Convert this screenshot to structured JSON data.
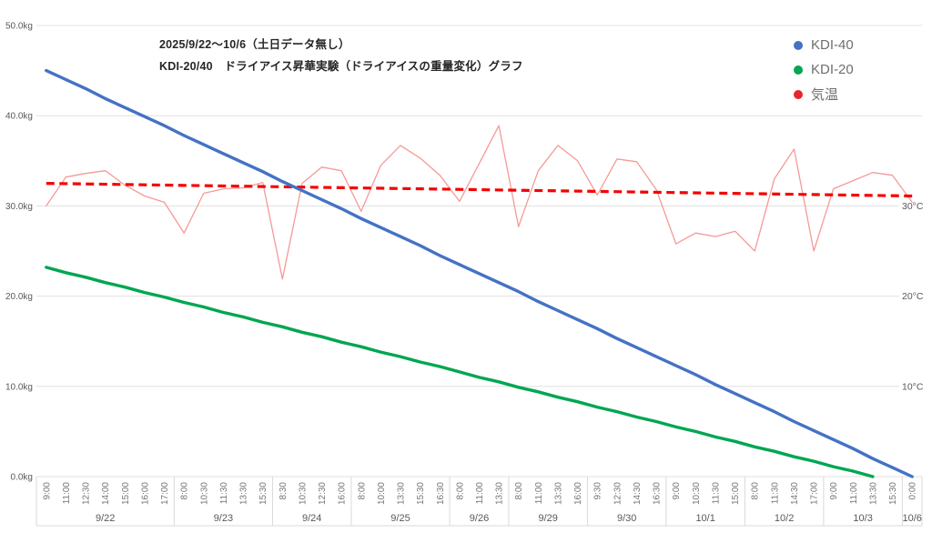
{
  "chart_data": {
    "type": "line",
    "title_lines": [
      "2025/9/22～10/6（土日データ無し）",
      "KDI-20/40　ドライアイス昇華実験（ドライアイスの重量変化）グラフ"
    ],
    "x_groups": [
      {
        "date": "9/22",
        "times": [
          "9:00",
          "11:00",
          "12:30",
          "14:00",
          "15:00",
          "16:00",
          "17:00"
        ]
      },
      {
        "date": "9/23",
        "times": [
          "8:00",
          "10:30",
          "11:30",
          "13:30",
          "15:30"
        ]
      },
      {
        "date": "9/24",
        "times": [
          "8:30",
          "10:30",
          "12:30",
          "16:00"
        ]
      },
      {
        "date": "9/25",
        "times": [
          "8:00",
          "10:00",
          "13:30",
          "15:30",
          "16:30"
        ]
      },
      {
        "date": "9/26",
        "times": [
          "8:00",
          "11:00",
          "13:30"
        ]
      },
      {
        "date": "9/29",
        "times": [
          "8:00",
          "11:00",
          "13:30",
          "16:00"
        ]
      },
      {
        "date": "9/30",
        "times": [
          "9:30",
          "12:30",
          "14:30",
          "16:30"
        ]
      },
      {
        "date": "10/1",
        "times": [
          "9:00",
          "10:30",
          "11:30",
          "15:00"
        ]
      },
      {
        "date": "10/2",
        "times": [
          "8:00",
          "11:30",
          "14:30",
          "17:00"
        ]
      },
      {
        "date": "10/3",
        "times": [
          "9:00",
          "11:00",
          "13:30",
          "15:30"
        ]
      },
      {
        "date": "10/6",
        "times": [
          "0:00"
        ]
      }
    ],
    "y_left": {
      "unit": "kg",
      "min": 0,
      "max": 50,
      "ticks": [
        {
          "v": 50,
          "label": "50.0kg"
        },
        {
          "v": 40,
          "label": "40.0kg"
        },
        {
          "v": 30,
          "label": "30.0kg"
        },
        {
          "v": 20,
          "label": "20.0kg"
        },
        {
          "v": 10,
          "label": "10.0kg"
        },
        {
          "v": 0,
          "label": "0.0kg"
        }
      ]
    },
    "y_right": {
      "unit": "°C",
      "ticks": [
        {
          "v": 30,
          "label": "30°C"
        },
        {
          "v": 20,
          "label": "20°C"
        },
        {
          "v": 10,
          "label": "10°C"
        }
      ]
    },
    "series": [
      {
        "name": "KDI-40",
        "unit": "kg",
        "color": "#4472c4",
        "line_style": "solid",
        "values": [
          45.0,
          44.0,
          43.0,
          41.9,
          40.9,
          39.9,
          38.9,
          37.8,
          36.8,
          35.8,
          34.8,
          33.8,
          32.7,
          31.7,
          30.7,
          29.7,
          28.6,
          27.6,
          26.6,
          25.6,
          24.5,
          23.5,
          22.5,
          21.5,
          20.5,
          19.4,
          18.4,
          17.4,
          16.4,
          15.3,
          14.3,
          13.3,
          12.3,
          11.3,
          10.2,
          9.2,
          8.2,
          7.2,
          6.1,
          5.1,
          4.1,
          3.1,
          2.0,
          1.0,
          0.0
        ]
      },
      {
        "name": "KDI-20",
        "unit": "kg",
        "color": "#00a651",
        "line_style": "solid",
        "values": [
          23.2,
          22.6,
          22.1,
          21.5,
          21.0,
          20.4,
          19.9,
          19.3,
          18.8,
          18.2,
          17.7,
          17.1,
          16.6,
          16.0,
          15.5,
          14.9,
          14.4,
          13.8,
          13.3,
          12.7,
          12.2,
          11.6,
          11.0,
          10.5,
          9.9,
          9.4,
          8.8,
          8.3,
          7.7,
          7.2,
          6.6,
          6.1,
          5.5,
          5.0,
          4.4,
          3.9,
          3.3,
          2.8,
          2.2,
          1.7,
          1.1,
          0.6,
          0.0,
          null,
          null
        ]
      },
      {
        "name": "気温",
        "unit": "°C",
        "color": "#e8252a",
        "line_color": "#f49a97",
        "line_style": "thin",
        "values": [
          30.0,
          33.2,
          33.6,
          33.9,
          32.3,
          31.1,
          30.4,
          27.0,
          31.4,
          31.9,
          32.0,
          32.6,
          21.9,
          32.5,
          34.3,
          33.9,
          29.4,
          34.5,
          36.7,
          35.3,
          33.4,
          30.5,
          34.7,
          38.9,
          27.7,
          33.9,
          36.7,
          35.0,
          31.2,
          35.2,
          34.9,
          31.8,
          25.8,
          27.0,
          26.6,
          27.2,
          25.0,
          33.0,
          36.3,
          25.0,
          31.9,
          32.8,
          33.7,
          33.4,
          30.4
        ],
        "trend": {
          "type": "linear",
          "start_c": 32.5,
          "end_c": 31.1,
          "style": "dashed",
          "color": "#f50000"
        }
      }
    ],
    "grid": "horizontal-only",
    "legend_position": "top-right"
  }
}
